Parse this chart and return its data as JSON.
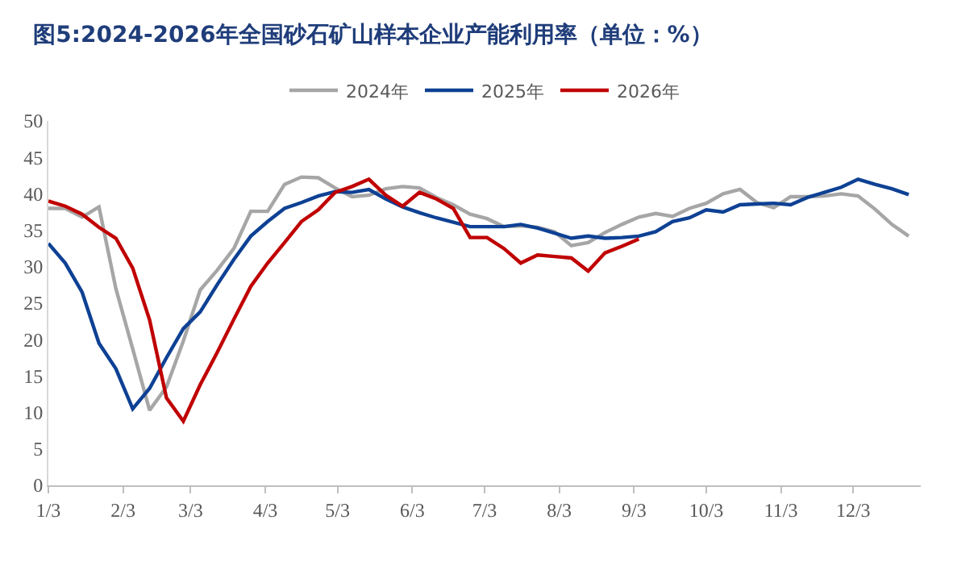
{
  "chart_data": {
    "type": "line",
    "title": "图5:2024-2026年全国砂石矿山样本企业产能利用率（单位：%）",
    "x": [
      "--01-03",
      "--01-10",
      "--01-17",
      "--01-24",
      "--01-31",
      "--02-07",
      "--02-14",
      "--02-21",
      "--02-28",
      "--03-07",
      "--03-14",
      "--03-21",
      "--03-28",
      "--04-04",
      "--04-11",
      "--04-18",
      "--04-25",
      "--05-02",
      "--05-09",
      "--05-16",
      "--05-23",
      "--05-30",
      "--06-06",
      "--06-13",
      "--06-20",
      "--06-27",
      "--07-04",
      "--07-11",
      "--07-18",
      "--07-25",
      "--08-01",
      "--08-08",
      "--08-15",
      "--08-22",
      "--08-29",
      "--09-05",
      "--09-12",
      "--09-19",
      "--09-26",
      "--10-03",
      "--10-10",
      "--10-17",
      "--10-24",
      "--10-31",
      "--11-07",
      "--11-14",
      "--11-21",
      "--11-28",
      "--12-05",
      "--12-12",
      "--12-19",
      "--12-26"
    ],
    "series": [
      {
        "name": "2024年",
        "color": "#a6a6a6",
        "values": [
          38,
          38,
          36.8,
          38.2,
          27,
          18.7,
          10.3,
          13.5,
          19.8,
          26.8,
          29.5,
          32.5,
          37.6,
          37.6,
          41.3,
          42.3,
          42.2,
          40.8,
          39.6,
          39.8,
          40.7,
          41,
          40.8,
          39.5,
          38.5,
          37.2,
          36.6,
          35.5,
          35.6,
          35.4,
          34.8,
          32.9,
          33.3,
          34.7,
          35.8,
          36.8,
          37.3,
          36.9,
          38,
          38.7,
          40,
          40.6,
          38.8,
          38.1,
          39.6,
          39.6,
          39.7,
          40,
          39.7,
          37.9,
          35.8,
          34.2
        ]
      },
      {
        "name": "2025年",
        "color": "#0e4194",
        "values": [
          33.2,
          30.5,
          26.5,
          19.5,
          16,
          10.5,
          13.3,
          17.5,
          21.5,
          23.8,
          27.5,
          31,
          34.2,
          36.2,
          38,
          38.8,
          39.7,
          40.3,
          40.2,
          40.6,
          39.3,
          38.2,
          37.4,
          36.7,
          36.1,
          35.5,
          35.5,
          35.5,
          35.8,
          35.3,
          34.6,
          33.9,
          34.2,
          33.9,
          34,
          34.2,
          34.8,
          36.2,
          36.7,
          37.8,
          37.5,
          38.5,
          38.6,
          38.7,
          38.5,
          39.5,
          40.2,
          40.9,
          42,
          41.3,
          40.7,
          39.9
        ]
      },
      {
        "name": "2026年",
        "color": "#c00000",
        "values": [
          39,
          38.3,
          37.2,
          35.4,
          33.9,
          29.8,
          22.7,
          12,
          8.8,
          13.8,
          18.2,
          22.8,
          27.3,
          30.5,
          33.3,
          36.2,
          37.8,
          40.2,
          41,
          42,
          39.8,
          38.3,
          40.2,
          39.3,
          38,
          34,
          34,
          32.5,
          30.5,
          31.6,
          31.4,
          31.2,
          29.4,
          31.9,
          32.8,
          33.8,
          null,
          null,
          null,
          null,
          null,
          null,
          null,
          null,
          null,
          null,
          null,
          null,
          null,
          null,
          null,
          null
        ]
      }
    ],
    "xlim": [
      "--01-03",
      "--12-31"
    ],
    "xticks": [
      {
        "value": "--01-03",
        "label": "1/3"
      },
      {
        "value": "--02-03",
        "label": "2/3"
      },
      {
        "value": "--03-03",
        "label": "3/3"
      },
      {
        "value": "--04-03",
        "label": "4/3"
      },
      {
        "value": "--05-03",
        "label": "5/3"
      },
      {
        "value": "--06-03",
        "label": "6/3"
      },
      {
        "value": "--07-03",
        "label": "7/3"
      },
      {
        "value": "--08-03",
        "label": "8/3"
      },
      {
        "value": "--09-03",
        "label": "9/3"
      },
      {
        "value": "--10-03",
        "label": "10/3"
      },
      {
        "value": "--11-03",
        "label": "11/3"
      },
      {
        "value": "--12-03",
        "label": "12/3"
      }
    ],
    "ylim": [
      0,
      50
    ],
    "yticks": [
      0,
      5,
      10,
      15,
      20,
      25,
      30,
      35,
      40,
      45,
      50
    ],
    "grid": false,
    "legend": "top",
    "marker": "none",
    "line_style": "solid"
  }
}
